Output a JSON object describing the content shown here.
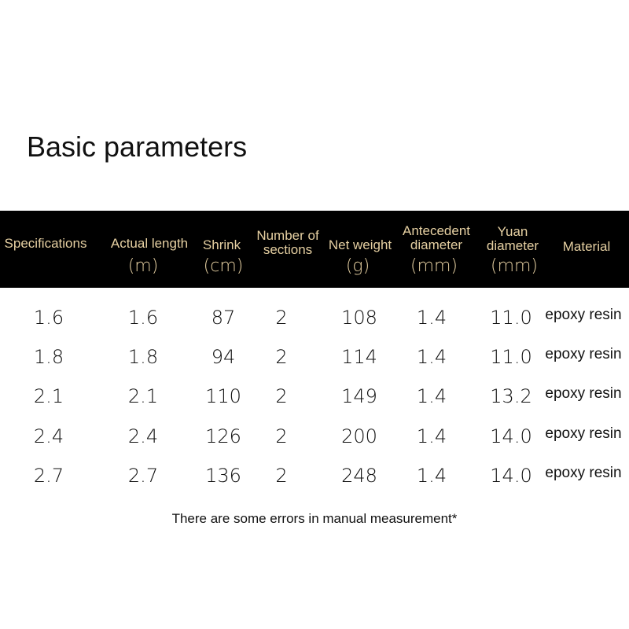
{
  "title": "Basic parameters",
  "headers": [
    {
      "label": "Specifications",
      "unit": ""
    },
    {
      "label": "Actual length",
      "unit": "(m)"
    },
    {
      "label": "Shrink",
      "unit": "(cm)"
    },
    {
      "label": "Number of sections",
      "unit": ""
    },
    {
      "label": "Net weight",
      "unit": "(g)"
    },
    {
      "label": "Antecedent diameter",
      "unit": "(mm)"
    },
    {
      "label": "Yuan diameter",
      "unit": "(mm)"
    },
    {
      "label": "Material",
      "unit": ""
    }
  ],
  "rows": [
    [
      "1.6",
      "1.6",
      "87",
      "2",
      "108",
      "1.4",
      "11.0",
      "epoxy resin"
    ],
    [
      "1.8",
      "1.8",
      "94",
      "2",
      "114",
      "1.4",
      "11.0",
      "epoxy resin"
    ],
    [
      "2.1",
      "2.1",
      "110",
      "2",
      "149",
      "1.4",
      "13.2",
      "epoxy resin"
    ],
    [
      "2.4",
      "2.4",
      "126",
      "2",
      "200",
      "1.4",
      "14.0",
      "epoxy resin"
    ],
    [
      "2.7",
      "2.7",
      "136",
      "2",
      "248",
      "1.4",
      "14.0",
      "epoxy resin"
    ]
  ],
  "note": "There are some errors in manual measurement*",
  "colors": {
    "header_bg": "#000000",
    "header_text": "#e6d0a2"
  }
}
